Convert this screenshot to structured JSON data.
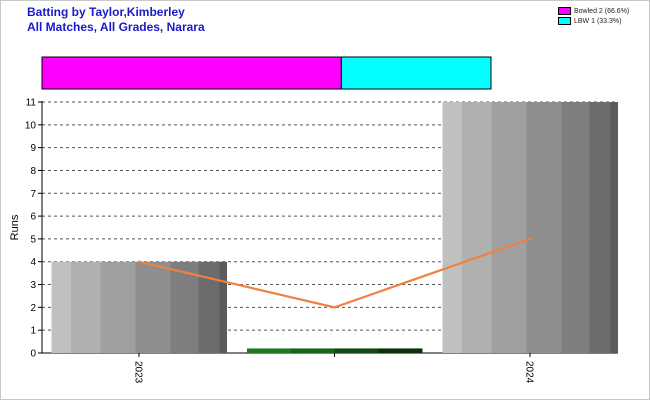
{
  "title_lines": [
    "Batting by Taylor,Kimberley",
    "All Matches, All Grades, Narara"
  ],
  "legend": [
    {
      "label": "Bowled 2 (66.6%)",
      "color": "#ff00ff"
    },
    {
      "label": "LBW 1 (33.3%)",
      "color": "#00ffff"
    }
  ],
  "chart_data": {
    "type": "bar",
    "title": "Batting by Taylor,Kimberley",
    "subtitle": "All Matches, All Grades, Narara",
    "ylabel": "Runs",
    "xlabel": "",
    "ylim": [
      0,
      11
    ],
    "yticks": [
      0,
      1,
      2,
      3,
      4,
      5,
      6,
      7,
      8,
      9,
      10,
      11
    ],
    "grid": true,
    "categories": [
      "2023",
      "",
      "2024"
    ],
    "bars": [
      {
        "category": "2023",
        "value": 4,
        "style": "gray"
      },
      {
        "category": "",
        "value": 0.2,
        "style": "green"
      },
      {
        "category": "2024",
        "value": 11,
        "style": "gray"
      }
    ],
    "line": {
      "values": [
        4,
        2,
        5
      ],
      "color": "#f08040"
    },
    "dismissals": [
      {
        "label": "Bowled",
        "count": 2,
        "percent": 66.6,
        "color": "#ff00ff"
      },
      {
        "label": "LBW",
        "count": 1,
        "percent": 33.3,
        "color": "#00ffff"
      }
    ]
  }
}
